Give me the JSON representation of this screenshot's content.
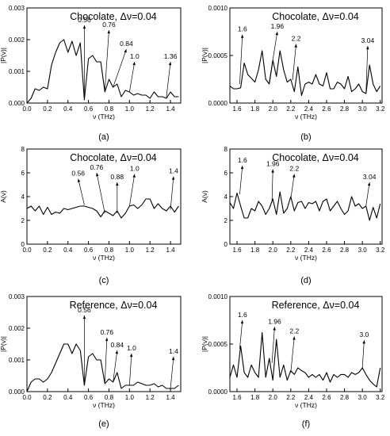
{
  "chart_data": [
    {
      "id": "a",
      "type": "line",
      "caption": "(a)",
      "title_main": "Chocolate, ",
      "title_sym": "Δν",
      "title_val": "=0.04",
      "xlabel": "ν (THz)",
      "ylabel": "|P(ν)|",
      "xlim": [
        0.0,
        1.5
      ],
      "ylim": [
        0,
        0.003
      ],
      "xticks": [
        0.0,
        0.2,
        0.4,
        0.6,
        0.8,
        1.0,
        1.2,
        1.4
      ],
      "xtick_labels": [
        "0.0",
        "0.2",
        "0.4",
        "0.6",
        "0.8",
        "1.0",
        "1.2",
        "1.4"
      ],
      "yticks": [
        0,
        0.001,
        0.002,
        0.003
      ],
      "ytick_labels": [
        "0.000",
        "0.001",
        "0.002",
        "0.003"
      ],
      "x": [
        0.0,
        0.04,
        0.08,
        0.12,
        0.16,
        0.2,
        0.24,
        0.28,
        0.32,
        0.36,
        0.4,
        0.44,
        0.48,
        0.52,
        0.56,
        0.6,
        0.64,
        0.68,
        0.72,
        0.76,
        0.8,
        0.84,
        0.88,
        0.92,
        0.96,
        1.0,
        1.04,
        1.08,
        1.12,
        1.16,
        1.2,
        1.24,
        1.28,
        1.32,
        1.36,
        1.4,
        1.44,
        1.48
      ],
      "y": [
        0.0,
        0.00015,
        0.00045,
        0.0004,
        0.0005,
        0.00045,
        0.0012,
        0.0016,
        0.0019,
        0.002,
        0.0016,
        0.00195,
        0.0015,
        0.0019,
        0.0001,
        0.0014,
        0.0015,
        0.0013,
        0.0013,
        0.00035,
        0.00075,
        0.0005,
        0.0006,
        0.0002,
        0.0004,
        0.00035,
        0.00025,
        0.0003,
        0.00025,
        0.00025,
        0.00015,
        0.00035,
        0.0002,
        0.0002,
        0.00015,
        0.00035,
        0.0002,
        0.0002
      ],
      "annotations": [
        {
          "text": "0.56",
          "x": 0.56,
          "y": 0.00012,
          "tx": 0.56,
          "ty": 0.00245
        },
        {
          "text": "0.76",
          "x": 0.76,
          "y": 0.0004,
          "tx": 0.8,
          "ty": 0.0023
        },
        {
          "text": "0.84",
          "x": 0.84,
          "y": 0.0005,
          "tx": 0.97,
          "ty": 0.0017
        },
        {
          "text": "1.0",
          "x": 1.0,
          "y": 0.00035,
          "tx": 1.05,
          "ty": 0.0013
        },
        {
          "text": "1.36",
          "x": 1.36,
          "y": 0.00018,
          "tx": 1.4,
          "ty": 0.0013
        }
      ]
    },
    {
      "id": "b",
      "type": "line",
      "caption": "(b)",
      "title_main": "Chocolate, ",
      "title_sym": "Δν",
      "title_val": "=0.04",
      "xlabel": "ν (THz)",
      "ylabel": "|P(ν)|",
      "xlim": [
        1.52,
        3.22
      ],
      "ylim": [
        0,
        0.001
      ],
      "xticks": [
        1.6,
        1.8,
        2.0,
        2.2,
        2.4,
        2.6,
        2.8,
        3.0,
        3.2
      ],
      "xtick_labels": [
        "1.6",
        "1.8",
        "2.0",
        "2.2",
        "2.4",
        "2.6",
        "2.8",
        "3.0",
        "3.2"
      ],
      "yticks": [
        0,
        0.0005,
        0.001
      ],
      "ytick_labels": [
        "0.0000",
        "0.0005",
        "0.0010"
      ],
      "x": [
        1.52,
        1.56,
        1.6,
        1.64,
        1.68,
        1.72,
        1.76,
        1.8,
        1.84,
        1.88,
        1.92,
        1.96,
        2.0,
        2.04,
        2.08,
        2.12,
        2.16,
        2.2,
        2.24,
        2.28,
        2.32,
        2.36,
        2.4,
        2.44,
        2.48,
        2.52,
        2.56,
        2.6,
        2.64,
        2.68,
        2.72,
        2.76,
        2.8,
        2.84,
        2.88,
        2.92,
        2.96,
        3.0,
        3.04,
        3.08,
        3.12,
        3.16,
        3.2
      ],
      "y": [
        0.00018,
        0.00015,
        0.00015,
        0.00016,
        0.00042,
        0.0003,
        0.00026,
        0.00022,
        0.00035,
        0.00055,
        0.00025,
        0.0002,
        0.00045,
        0.00028,
        0.00055,
        0.00035,
        0.00022,
        0.00025,
        0.00012,
        0.00038,
        8e-05,
        0.0002,
        0.00022,
        0.0002,
        0.0003,
        0.0002,
        0.00018,
        0.00032,
        0.00015,
        0.00015,
        0.00022,
        0.0002,
        0.00015,
        0.00028,
        0.00012,
        0.00015,
        0.0002,
        0.00012,
        0.0001,
        0.0004,
        0.0002,
        0.00012,
        0.00018
      ],
      "annotations": [
        {
          "text": "1.6",
          "x": 1.63,
          "y": 0.0002,
          "tx": 1.66,
          "ty": 0.00072
        },
        {
          "text": "1.96",
          "x": 1.96,
          "y": 0.00022,
          "tx": 2.05,
          "ty": 0.00075
        },
        {
          "text": "2.2",
          "x": 2.22,
          "y": 0.00024,
          "tx": 2.26,
          "ty": 0.00062
        },
        {
          "text": "3.04",
          "x": 3.04,
          "y": 0.0001,
          "tx": 3.06,
          "ty": 0.0006
        }
      ]
    },
    {
      "id": "c",
      "type": "line",
      "caption": "(c)",
      "title_main": "Chocolate, ",
      "title_sym": "Δν",
      "title_val": "=0.04",
      "xlabel": "ν (THz)",
      "ylabel": "A(ν)",
      "xlim": [
        0.0,
        1.5
      ],
      "ylim": [
        0,
        8
      ],
      "xticks": [
        0.0,
        0.2,
        0.4,
        0.6,
        0.8,
        1.0,
        1.2,
        1.4
      ],
      "xtick_labels": [
        "0.0",
        "0.2",
        "0.4",
        "0.6",
        "0.8",
        "1.0",
        "1.2",
        "1.4"
      ],
      "yticks": [
        0,
        2,
        4,
        6,
        8
      ],
      "ytick_labels": [
        "0",
        "2",
        "4",
        "6",
        "8"
      ],
      "x": [
        0.0,
        0.04,
        0.08,
        0.12,
        0.16,
        0.2,
        0.24,
        0.28,
        0.32,
        0.36,
        0.4,
        0.44,
        0.48,
        0.52,
        0.56,
        0.6,
        0.64,
        0.68,
        0.72,
        0.76,
        0.8,
        0.84,
        0.88,
        0.92,
        0.96,
        1.0,
        1.04,
        1.08,
        1.12,
        1.16,
        1.2,
        1.24,
        1.28,
        1.32,
        1.36,
        1.4,
        1.44,
        1.48
      ],
      "y": [
        3.0,
        3.2,
        2.8,
        3.2,
        2.5,
        3.1,
        2.5,
        2.7,
        2.6,
        3.0,
        2.9,
        3.0,
        3.1,
        3.2,
        3.2,
        3.1,
        3.0,
        2.8,
        2.3,
        2.8,
        2.6,
        2.4,
        2.8,
        2.2,
        2.6,
        3.2,
        3.3,
        3.0,
        3.3,
        3.8,
        3.8,
        3.0,
        3.4,
        3.0,
        2.8,
        3.2,
        2.7,
        3.2
      ],
      "annotations": [
        {
          "text": "0.56",
          "x": 0.56,
          "y": 3.3,
          "tx": 0.5,
          "ty": 5.5
        },
        {
          "text": "0.76",
          "x": 0.76,
          "y": 2.6,
          "tx": 0.68,
          "ty": 6.0
        },
        {
          "text": "0.88",
          "x": 0.88,
          "y": 2.6,
          "tx": 0.88,
          "ty": 5.2
        },
        {
          "text": "1.0",
          "x": 1.0,
          "y": 3.2,
          "tx": 1.05,
          "ty": 5.9
        },
        {
          "text": "1.4",
          "x": 1.4,
          "y": 2.9,
          "tx": 1.43,
          "ty": 5.7
        }
      ]
    },
    {
      "id": "d",
      "type": "line",
      "caption": "(d)",
      "title_main": "Chocolate, ",
      "title_sym": "Δν",
      "title_val": "=0.04",
      "xlabel": "ν (THz)",
      "ylabel": "A(ν)",
      "xlim": [
        1.52,
        3.22
      ],
      "ylim": [
        0,
        8
      ],
      "xticks": [
        1.6,
        1.8,
        2.0,
        2.2,
        2.4,
        2.6,
        2.8,
        3.0,
        3.2
      ],
      "xtick_labels": [
        "1.6",
        "1.8",
        "2.0",
        "2.2",
        "2.4",
        "2.6",
        "2.8",
        "3.0",
        "3.2"
      ],
      "yticks": [
        0,
        2,
        4,
        6,
        8
      ],
      "ytick_labels": [
        "0",
        "2",
        "4",
        "6",
        "8"
      ],
      "x": [
        1.52,
        1.56,
        1.6,
        1.64,
        1.68,
        1.72,
        1.76,
        1.8,
        1.84,
        1.88,
        1.92,
        1.96,
        2.0,
        2.04,
        2.08,
        2.12,
        2.16,
        2.2,
        2.24,
        2.28,
        2.32,
        2.36,
        2.4,
        2.44,
        2.48,
        2.52,
        2.56,
        2.6,
        2.64,
        2.68,
        2.72,
        2.76,
        2.8,
        2.84,
        2.88,
        2.92,
        2.96,
        3.0,
        3.04,
        3.08,
        3.12,
        3.16,
        3.2
      ],
      "y": [
        3.5,
        3.0,
        4.3,
        3.2,
        2.2,
        2.2,
        3.0,
        2.8,
        3.6,
        3.2,
        2.5,
        3.0,
        3.8,
        2.5,
        4.4,
        2.6,
        3.0,
        4.0,
        2.8,
        3.5,
        3.6,
        3.0,
        3.5,
        3.4,
        3.6,
        2.8,
        3.6,
        3.8,
        2.8,
        3.2,
        3.6,
        3.0,
        2.5,
        2.8,
        4.0,
        3.2,
        3.4,
        3.0,
        3.2,
        2.0,
        3.1,
        2.2,
        3.4
      ],
      "annotations": [
        {
          "text": "1.6",
          "x": 1.63,
          "y": 4.2,
          "tx": 1.66,
          "ty": 6.6
        },
        {
          "text": "1.96",
          "x": 1.99,
          "y": 3.5,
          "tx": 2.0,
          "ty": 6.3
        },
        {
          "text": "2.2",
          "x": 2.2,
          "y": 3.8,
          "tx": 2.24,
          "ty": 5.9
        },
        {
          "text": "3.04",
          "x": 3.04,
          "y": 3.2,
          "tx": 3.08,
          "ty": 5.2
        }
      ]
    },
    {
      "id": "e",
      "type": "line",
      "caption": "(e)",
      "title_main": "Reference, ",
      "title_sym": "Δν",
      "title_val": "=0.04",
      "xlabel": "ν (THz)",
      "ylabel": "|P(ν)|",
      "xlim": [
        0.0,
        1.5
      ],
      "ylim": [
        0,
        0.003
      ],
      "xticks": [
        0.0,
        0.2,
        0.4,
        0.6,
        0.8,
        1.0,
        1.2,
        1.4
      ],
      "xtick_labels": [
        "0.0",
        "0.2",
        "0.4",
        "0.6",
        "0.8",
        "1.0",
        "1.2",
        "1.4"
      ],
      "yticks": [
        0,
        0.001,
        0.002,
        0.003
      ],
      "ytick_labels": [
        "0.000",
        "0.001",
        "0.002",
        "0.003"
      ],
      "x": [
        0.0,
        0.04,
        0.08,
        0.12,
        0.16,
        0.2,
        0.24,
        0.28,
        0.32,
        0.36,
        0.4,
        0.44,
        0.48,
        0.52,
        0.56,
        0.6,
        0.64,
        0.68,
        0.72,
        0.76,
        0.8,
        0.84,
        0.88,
        0.92,
        0.96,
        1.0,
        1.04,
        1.08,
        1.12,
        1.16,
        1.2,
        1.24,
        1.28,
        1.32,
        1.36,
        1.4,
        1.44,
        1.48
      ],
      "y": [
        0.0,
        0.0003,
        0.0004,
        0.0004,
        0.0003,
        0.0004,
        0.0006,
        0.0009,
        0.0012,
        0.0015,
        0.0015,
        0.0012,
        0.0015,
        0.0013,
        0.0002,
        0.0011,
        0.0012,
        0.001,
        0.001,
        0.00025,
        0.0004,
        0.0003,
        0.0006,
        0.0001,
        0.0002,
        0.0002,
        0.0002,
        0.0003,
        0.00025,
        0.0002,
        0.0002,
        0.00025,
        0.00015,
        0.0002,
        0.0001,
        0.0001,
        0.0001,
        0.0002
      ],
      "annotations": [
        {
          "text": "0.56",
          "x": 0.56,
          "y": 0.0002,
          "tx": 0.56,
          "ty": 0.0024
        },
        {
          "text": "0.76",
          "x": 0.76,
          "y": 0.0003,
          "tx": 0.78,
          "ty": 0.0017
        },
        {
          "text": "0.84",
          "x": 0.84,
          "y": 0.0003,
          "tx": 0.88,
          "ty": 0.0013
        },
        {
          "text": "1.0",
          "x": 1.0,
          "y": 0.0002,
          "tx": 1.02,
          "ty": 0.0012
        },
        {
          "text": "1.4",
          "x": 1.4,
          "y": 0.0001,
          "tx": 1.43,
          "ty": 0.0011
        }
      ]
    },
    {
      "id": "f",
      "type": "line",
      "caption": "(f)",
      "title_main": "Reference, ",
      "title_sym": "Δν",
      "title_val": "=0.04",
      "xlabel": "ν (THz)",
      "ylabel": "|P(ν)|",
      "xlim": [
        1.52,
        3.22
      ],
      "ylim": [
        0,
        0.001
      ],
      "xticks": [
        1.6,
        1.8,
        2.0,
        2.2,
        2.4,
        2.6,
        2.8,
        3.0,
        3.2
      ],
      "xtick_labels": [
        "1.6",
        "1.8",
        "2.0",
        "2.2",
        "2.4",
        "2.6",
        "2.8",
        "3.0",
        "3.2"
      ],
      "yticks": [
        0,
        0.0005,
        0.001
      ],
      "ytick_labels": [
        "0.0000",
        "0.0005",
        "0.0010"
      ],
      "x": [
        1.52,
        1.56,
        1.6,
        1.64,
        1.68,
        1.72,
        1.76,
        1.8,
        1.84,
        1.88,
        1.92,
        1.96,
        2.0,
        2.04,
        2.08,
        2.12,
        2.16,
        2.2,
        2.24,
        2.28,
        2.32,
        2.36,
        2.4,
        2.44,
        2.48,
        2.52,
        2.56,
        2.6,
        2.64,
        2.68,
        2.72,
        2.76,
        2.8,
        2.84,
        2.88,
        2.92,
        2.96,
        3.0,
        3.04,
        3.08,
        3.12,
        3.16,
        3.2
      ],
      "y": [
        0.00015,
        0.00028,
        0.00015,
        0.00048,
        0.0002,
        0.00015,
        0.00028,
        0.0002,
        0.00015,
        0.00062,
        0.00015,
        0.00035,
        0.00012,
        0.00055,
        0.00015,
        0.00028,
        0.00012,
        0.00022,
        0.00018,
        0.00025,
        0.00022,
        0.0002,
        0.00015,
        0.00018,
        0.00015,
        0.00018,
        0.00012,
        0.0002,
        0.0001,
        0.00018,
        0.00015,
        0.00018,
        0.00018,
        0.00015,
        0.0002,
        0.00018,
        0.0002,
        0.00025,
        0.00018,
        0.00012,
        8e-05,
        5e-05,
        0.00025
      ],
      "annotations": [
        {
          "text": "1.6",
          "x": 1.63,
          "y": 0.00045,
          "tx": 1.66,
          "ty": 0.00075
        },
        {
          "text": "1.96",
          "x": 1.99,
          "y": 0.0003,
          "tx": 2.02,
          "ty": 0.00068
        },
        {
          "text": "2.2",
          "x": 2.2,
          "y": 0.0002,
          "tx": 2.24,
          "ty": 0.00058
        },
        {
          "text": "3.0",
          "x": 3.0,
          "y": 0.00025,
          "tx": 3.02,
          "ty": 0.00054
        }
      ]
    }
  ]
}
